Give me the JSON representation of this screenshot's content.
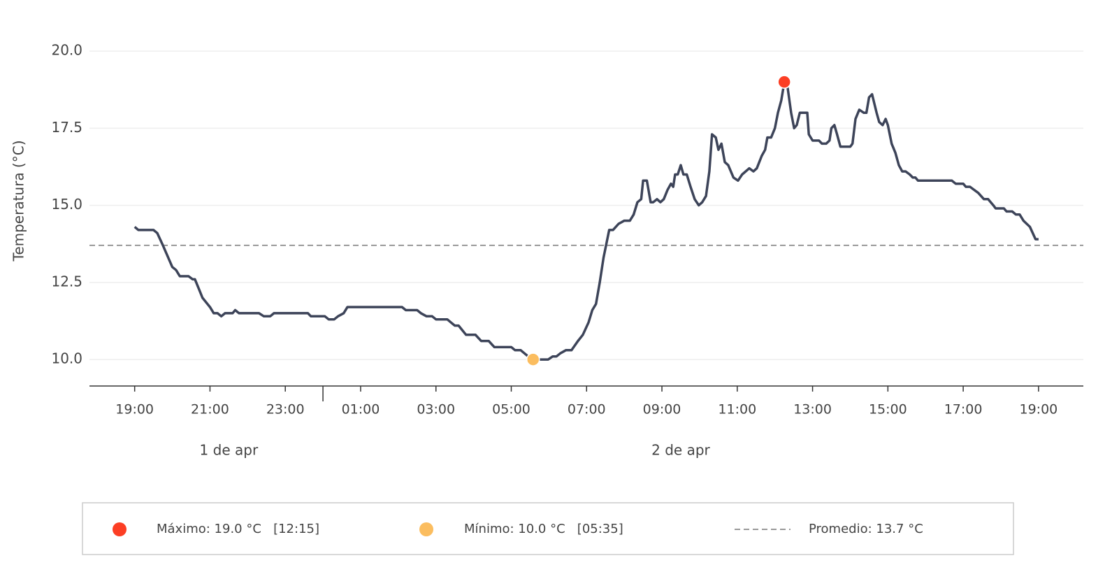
{
  "chart_data": {
    "type": "line",
    "y_label": "Temperatura (°C)",
    "x": [
      19.0,
      19.1,
      19.5,
      19.6,
      19.75,
      20.0,
      20.1,
      20.2,
      20.43,
      20.54,
      20.6,
      20.7,
      20.8,
      21.0,
      21.1,
      21.2,
      21.3,
      21.4,
      21.6,
      21.67,
      21.77,
      22.3,
      22.43,
      22.6,
      22.7,
      23.6,
      23.68,
      24.05,
      24.15,
      24.3,
      24.4,
      24.55,
      24.65,
      26.1,
      26.2,
      26.5,
      26.6,
      26.75,
      26.9,
      27.0,
      27.3,
      27.4,
      27.5,
      27.6,
      27.8,
      28.05,
      28.2,
      28.4,
      28.55,
      29.0,
      29.1,
      29.25,
      29.35,
      29.45,
      29.58,
      29.98,
      30.1,
      30.2,
      30.3,
      30.45,
      30.6,
      30.77,
      30.9,
      31.05,
      31.15,
      31.25,
      31.35,
      31.45,
      31.6,
      31.7,
      31.85,
      32.0,
      32.15,
      32.25,
      32.35,
      32.45,
      32.5,
      32.6,
      32.7,
      32.77,
      32.87,
      32.96,
      33.05,
      33.15,
      33.24,
      33.3,
      33.35,
      33.42,
      33.5,
      33.57,
      33.66,
      33.76,
      33.87,
      33.98,
      34.07,
      34.17,
      34.26,
      34.33,
      34.43,
      34.5,
      34.58,
      34.67,
      34.76,
      34.9,
      35.02,
      35.13,
      35.32,
      35.43,
      35.52,
      35.65,
      35.74,
      35.8,
      35.9,
      36.0,
      36.08,
      36.17,
      36.25,
      36.34,
      36.43,
      36.51,
      36.58,
      36.66,
      36.86,
      36.9,
      37.0,
      37.17,
      37.25,
      37.36,
      37.45,
      37.5,
      37.58,
      37.65,
      37.74,
      38.0,
      38.06,
      38.14,
      38.24,
      38.36,
      38.43,
      38.5,
      38.58,
      38.7,
      38.77,
      38.86,
      38.94,
      39.0,
      39.1,
      39.2,
      39.29,
      39.38,
      39.47,
      39.58,
      39.66,
      39.73,
      39.8,
      40.7,
      40.8,
      41.0,
      41.07,
      41.18,
      41.4,
      41.55,
      41.66,
      41.8,
      41.86,
      42.08,
      42.15,
      42.3,
      42.4,
      42.5,
      42.6,
      42.77,
      42.92,
      43.0
    ],
    "series": [
      {
        "name": "Temperatura",
        "color": "#3d4459",
        "values": [
          14.3,
          14.2,
          14.2,
          14.1,
          13.7,
          13.0,
          12.9,
          12.7,
          12.7,
          12.6,
          12.6,
          12.3,
          12.0,
          11.7,
          11.5,
          11.5,
          11.4,
          11.5,
          11.5,
          11.6,
          11.5,
          11.5,
          11.4,
          11.4,
          11.5,
          11.5,
          11.4,
          11.4,
          11.3,
          11.3,
          11.4,
          11.5,
          11.7,
          11.7,
          11.6,
          11.6,
          11.5,
          11.4,
          11.4,
          11.3,
          11.3,
          11.2,
          11.1,
          11.1,
          10.8,
          10.8,
          10.6,
          10.6,
          10.4,
          10.4,
          10.3,
          10.3,
          10.2,
          10.1,
          10.0,
          10.0,
          10.1,
          10.1,
          10.2,
          10.3,
          10.3,
          10.6,
          10.8,
          11.2,
          11.6,
          11.8,
          12.5,
          13.3,
          14.2,
          14.2,
          14.4,
          14.5,
          14.5,
          14.7,
          15.1,
          15.2,
          15.8,
          15.8,
          15.1,
          15.1,
          15.2,
          15.1,
          15.2,
          15.5,
          15.7,
          15.6,
          16.0,
          16.0,
          16.3,
          16.0,
          16.0,
          15.6,
          15.2,
          15.0,
          15.1,
          15.3,
          16.1,
          17.3,
          17.2,
          16.8,
          17.0,
          16.4,
          16.3,
          15.9,
          15.8,
          16.0,
          16.2,
          16.1,
          16.2,
          16.6,
          16.8,
          17.2,
          17.2,
          17.5,
          18.0,
          18.4,
          19.0,
          18.8,
          18.0,
          17.5,
          17.6,
          18.0,
          18.0,
          17.3,
          17.1,
          17.1,
          17.0,
          17.0,
          17.1,
          17.5,
          17.6,
          17.3,
          16.9,
          16.9,
          17.0,
          17.8,
          18.1,
          18.0,
          18.0,
          18.5,
          18.6,
          18.0,
          17.7,
          17.6,
          17.8,
          17.6,
          17.0,
          16.7,
          16.3,
          16.1,
          16.1,
          16.0,
          15.9,
          15.9,
          15.8,
          15.8,
          15.7,
          15.7,
          15.6,
          15.6,
          15.4,
          15.2,
          15.2,
          15.0,
          14.9,
          14.9,
          14.8,
          14.8,
          14.7,
          14.7,
          14.5,
          14.3,
          13.9,
          13.9
        ]
      }
    ],
    "xlim": [
      17.8,
      44.19
    ],
    "xticks": [
      {
        "value": 19,
        "label": "19:00"
      },
      {
        "value": 21,
        "label": "21:00"
      },
      {
        "value": 23,
        "label": "23:00"
      },
      {
        "value": 25,
        "label": "01:00"
      },
      {
        "value": 27,
        "label": "03:00"
      },
      {
        "value": 29,
        "label": "05:00"
      },
      {
        "value": 31,
        "label": "07:00"
      },
      {
        "value": 33,
        "label": "09:00"
      },
      {
        "value": 35,
        "label": "11:00"
      },
      {
        "value": 37,
        "label": "13:00"
      },
      {
        "value": 39,
        "label": "15:00"
      },
      {
        "value": 41,
        "label": "17:00"
      },
      {
        "value": 43,
        "label": "19:00"
      }
    ],
    "day_break": 24,
    "days": [
      "1 de apr",
      "2 de apr"
    ],
    "ylim": [
      9.14,
      20.75
    ],
    "yticks": [
      {
        "value": 10,
        "label": "10.0"
      },
      {
        "value": 12.5,
        "label": "12.5"
      },
      {
        "value": 15,
        "label": "15.0"
      },
      {
        "value": 17.5,
        "label": "17.5"
      },
      {
        "value": 20,
        "label": "20.0"
      }
    ],
    "grid": true,
    "max": {
      "x": 36.25,
      "y": 19.0,
      "color": "#fc3e24",
      "label": "Máximo: 19.0 °C   [12:15]"
    },
    "min": {
      "x": 29.58,
      "y": 10.0,
      "color": "#fbbd5f",
      "label": "Mínimo: 10.0 °C   [05:35]"
    },
    "mean": {
      "value": 13.7,
      "color": "#999999",
      "label": "Promedio: 13.7 °C"
    }
  }
}
